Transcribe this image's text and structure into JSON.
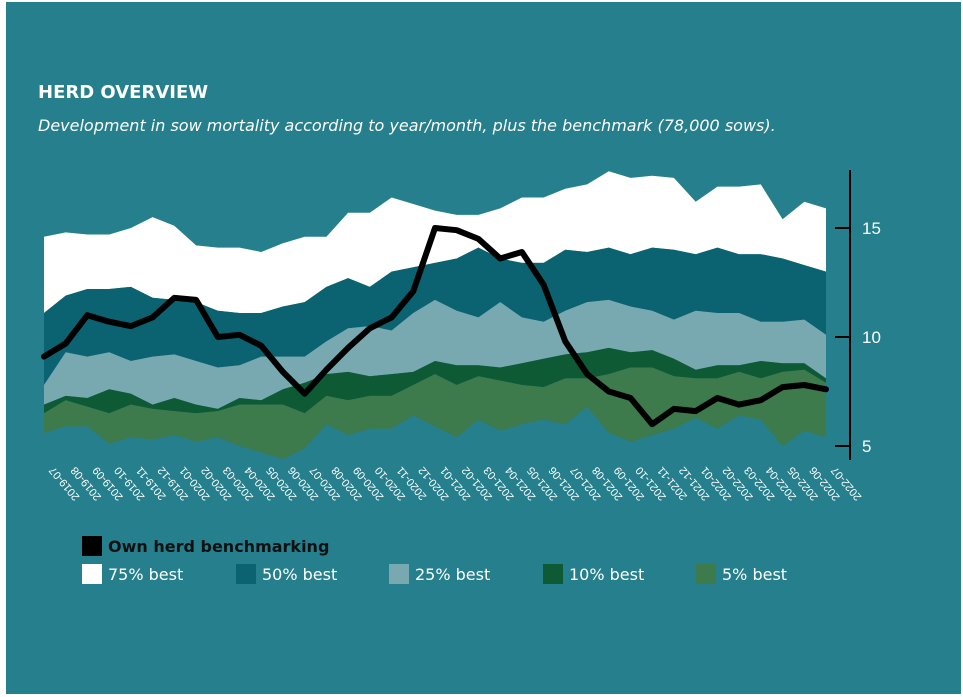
{
  "title": "HERD OVERVIEW",
  "subtitle": "Development in sow mortality according to year/month, plus the benchmark (78,000 sows).",
  "colors": {
    "background": "#257f8c",
    "p75": "#ffffff",
    "p50": "#0b6270",
    "p25": "#78a9b0",
    "p10": "#0d5a34",
    "p5": "#3d7a4c",
    "own": "#000000"
  },
  "legend": {
    "own": "Own herd benchmarking",
    "p75": "75% best",
    "p50": "50% best",
    "p25": "25% best",
    "p10": "10% best",
    "p5": "5% best"
  },
  "chart_data": {
    "type": "area",
    "ylim": [
      5,
      17
    ],
    "yticks": [
      5,
      10,
      15
    ],
    "categories": [
      "2019-07",
      "2019-08",
      "2019-09",
      "2019-10",
      "2019-11",
      "2019-12",
      "2020-01",
      "2020-02",
      "2020-03",
      "2020-04",
      "2020-05",
      "2020-06",
      "2020-07",
      "2020-08",
      "2020-09",
      "2020-10",
      "2020-11",
      "2020-12",
      "2021-01",
      "2021-02",
      "2021-03",
      "2021-04",
      "2021-05",
      "2021-06",
      "2021-07",
      "2021-08",
      "2021-09",
      "2021-10",
      "2021-11",
      "2021-12",
      "2022-01",
      "2022-02",
      "2022-03",
      "2022-04",
      "2022-05",
      "2022-06",
      "2022-07"
    ],
    "series": [
      {
        "name": "75% best",
        "key": "p75",
        "values": [
          14.6,
          14.8,
          14.7,
          14.7,
          15.0,
          15.5,
          15.1,
          14.2,
          14.1,
          14.1,
          13.9,
          14.3,
          14.6,
          14.6,
          15.7,
          15.7,
          16.4,
          16.1,
          15.8,
          15.6,
          15.6,
          15.9,
          16.4,
          16.4,
          16.8,
          17.0,
          17.6,
          17.3,
          17.4,
          17.3,
          16.2,
          16.9,
          16.9,
          17.0,
          15.4,
          16.2,
          15.9
        ]
      },
      {
        "name": "50% best",
        "key": "p50",
        "values": [
          11.1,
          11.9,
          12.2,
          12.2,
          12.3,
          11.8,
          11.7,
          11.6,
          11.2,
          11.1,
          11.1,
          11.4,
          11.6,
          12.3,
          12.7,
          12.3,
          13.0,
          13.2,
          13.4,
          13.6,
          14.1,
          13.6,
          13.4,
          13.4,
          14.0,
          13.9,
          14.1,
          13.8,
          14.1,
          14.0,
          13.8,
          14.1,
          13.8,
          13.8,
          13.6,
          13.3,
          13.0
        ]
      },
      {
        "name": "25% best",
        "key": "p25",
        "values": [
          7.8,
          9.3,
          9.1,
          9.3,
          8.9,
          9.1,
          9.2,
          8.9,
          8.6,
          8.7,
          9.1,
          9.1,
          9.1,
          9.8,
          10.4,
          10.5,
          10.3,
          11.1,
          11.7,
          11.2,
          10.9,
          11.6,
          10.9,
          10.7,
          11.2,
          11.6,
          11.7,
          11.4,
          11.2,
          10.8,
          11.2,
          11.1,
          11.1,
          10.7,
          10.7,
          10.8,
          10.1
        ]
      },
      {
        "name": "10% best",
        "key": "p10",
        "values": [
          6.9,
          7.3,
          7.2,
          7.6,
          7.4,
          6.9,
          7.2,
          6.9,
          6.7,
          7.2,
          7.1,
          7.6,
          7.9,
          8.3,
          8.4,
          8.2,
          8.3,
          8.4,
          8.9,
          8.7,
          8.7,
          8.6,
          8.8,
          9.0,
          9.2,
          9.3,
          9.5,
          9.3,
          9.4,
          9.0,
          8.5,
          8.7,
          8.7,
          8.9,
          8.8,
          8.8,
          8.1
        ]
      },
      {
        "name": "5% best",
        "key": "p5",
        "values": [
          6.5,
          7.1,
          6.8,
          6.5,
          6.9,
          6.7,
          6.6,
          6.5,
          6.6,
          6.9,
          6.9,
          6.9,
          6.5,
          7.3,
          7.1,
          7.3,
          7.3,
          7.8,
          8.3,
          7.8,
          8.2,
          8.0,
          7.8,
          7.7,
          8.1,
          8.1,
          8.3,
          8.6,
          8.6,
          8.2,
          8.1,
          8.1,
          8.4,
          8.1,
          8.4,
          8.5,
          7.9
        ]
      },
      {
        "name": "Own herd benchmarking",
        "key": "own",
        "values": [
          9.1,
          9.7,
          11.0,
          10.7,
          10.5,
          10.9,
          11.8,
          11.7,
          10.0,
          10.1,
          9.6,
          8.4,
          7.4,
          8.5,
          9.5,
          10.4,
          10.9,
          12.1,
          15.0,
          14.9,
          14.5,
          13.6,
          13.9,
          12.4,
          9.8,
          8.3,
          7.5,
          7.2,
          6.0,
          6.7,
          6.6,
          7.2,
          6.9,
          7.1,
          7.7,
          7.8,
          7.6
        ]
      }
    ],
    "lower_bound": {
      "values": [
        5.6,
        5.9,
        5.9,
        5.1,
        5.4,
        5.3,
        5.5,
        5.2,
        5.4,
        5.0,
        4.7,
        4.4,
        4.9,
        6.0,
        5.5,
        5.8,
        5.8,
        6.4,
        5.9,
        5.4,
        6.2,
        5.7,
        6.0,
        6.2,
        6.0,
        6.8,
        5.6,
        5.2,
        5.5,
        5.8,
        6.3,
        5.8,
        6.4,
        6.2,
        5.0,
        5.7,
        5.4
      ]
    }
  }
}
